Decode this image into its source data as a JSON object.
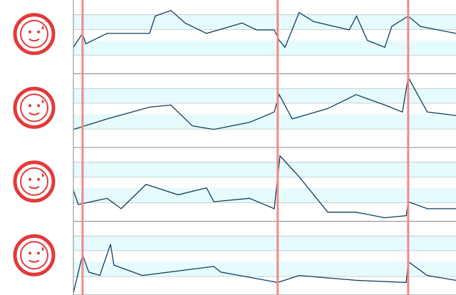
{
  "chart_data": [
    {
      "type": "line",
      "color": "#0b3d5c",
      "xlim": [
        0,
        100
      ],
      "ylim": [
        0,
        100
      ],
      "x": [
        0,
        2.4,
        3.2,
        8.8,
        19.9,
        21.4,
        25.5,
        29.2,
        34.8,
        44.1,
        47.9,
        52.5,
        53.8,
        55.3,
        59,
        62.8,
        72.1,
        74,
        76.8,
        81.4,
        83.2,
        87.5,
        90.7,
        100
      ],
      "values": [
        35,
        55,
        40,
        55,
        55,
        80,
        88,
        70,
        55,
        70,
        60,
        60,
        45,
        35,
        85,
        72,
        60,
        80,
        45,
        35,
        65,
        80,
        65,
        55
      ],
      "markers": [
        2.4,
        53.4,
        87.5
      ],
      "marker_color": "#f08a8a"
    },
    {
      "type": "line",
      "color": "#0b3d5c",
      "xlim": [
        0,
        100
      ],
      "ylim": [
        0,
        100
      ],
      "x": [
        0,
        8.8,
        19.9,
        25.5,
        31.1,
        36.7,
        46,
        52.5,
        53.8,
        57.2,
        66.5,
        73.9,
        81.4,
        86,
        87.5,
        92.5,
        100
      ],
      "values": [
        23,
        38,
        55,
        58,
        28,
        23,
        33,
        48,
        73,
        38,
        53,
        73,
        58,
        48,
        98,
        48,
        43
      ],
      "markers": [
        2.4,
        53.4,
        87.5
      ],
      "marker_color": "#f08a8a"
    },
    {
      "type": "line",
      "color": "#0b3d5c",
      "xlim": [
        0,
        100
      ],
      "ylim": [
        0,
        100
      ],
      "x": [
        0,
        1.3,
        8.8,
        12.5,
        19,
        27.4,
        34.8,
        36.7,
        46,
        52.5,
        54,
        59,
        66.5,
        73.9,
        81.4,
        87,
        87.5,
        92.5,
        100
      ],
      "values": [
        41,
        21,
        30,
        15,
        50,
        35,
        45,
        25,
        30,
        15,
        91,
        61,
        10,
        10,
        2,
        5,
        25,
        15,
        15
      ],
      "markers": [
        2.4,
        53.4,
        87.5
      ],
      "marker_color": "#f08a8a"
    },
    {
      "type": "line",
      "color": "#0b3d5c",
      "xlim": [
        0,
        100
      ],
      "ylim": [
        0,
        100
      ],
      "x": [
        0,
        2.4,
        4,
        6.9,
        9.7,
        10.6,
        18,
        36.7,
        38.5,
        53.4,
        59,
        73.9,
        87,
        87.5,
        92.5,
        100
      ],
      "values": [
        0,
        55,
        30,
        25,
        70,
        40,
        25,
        38,
        30,
        15,
        25,
        18,
        15,
        45,
        25,
        18
      ],
      "markers": [
        2.4,
        53.4,
        87.5
      ],
      "marker_color": "#f08a8a"
    }
  ]
}
